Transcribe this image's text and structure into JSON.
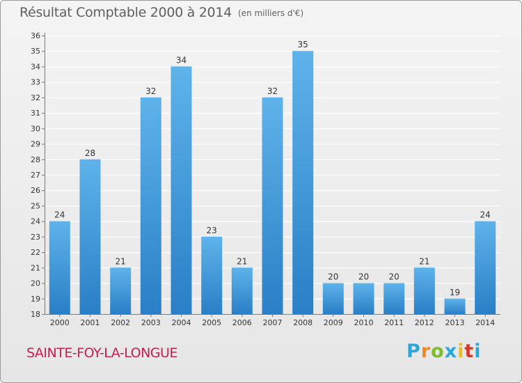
{
  "header": {
    "title": "Résultat Comptable 2000 à 2014",
    "unit": "(en milliers d'€)"
  },
  "footer": {
    "commune": "SAINTE-FOY-LA-LONGUE",
    "logo_letters": [
      "P",
      "r",
      "o",
      "x",
      "i",
      "t",
      "i"
    ]
  },
  "colors": {
    "bar_light": "#5eb3ea",
    "bar_dark": "#2a7fc6",
    "commune": "#c2204f"
  },
  "chart_data": {
    "type": "bar",
    "title": "Résultat Comptable 2000 à 2014",
    "ylabel": "(en milliers d'€)",
    "xlabel": "",
    "categories": [
      "2000",
      "2001",
      "2002",
      "2003",
      "2004",
      "2005",
      "2006",
      "2007",
      "2008",
      "2009",
      "2010",
      "2011",
      "2012",
      "2013",
      "2014"
    ],
    "values": [
      24,
      28,
      21,
      32,
      34,
      23,
      21,
      32,
      35,
      20,
      20,
      20,
      21,
      19,
      24
    ],
    "ylim": [
      18,
      36
    ],
    "yticks": [
      18,
      19,
      20,
      21,
      22,
      23,
      24,
      25,
      26,
      27,
      28,
      29,
      30,
      31,
      32,
      33,
      34,
      35,
      36
    ],
    "grid": true
  }
}
